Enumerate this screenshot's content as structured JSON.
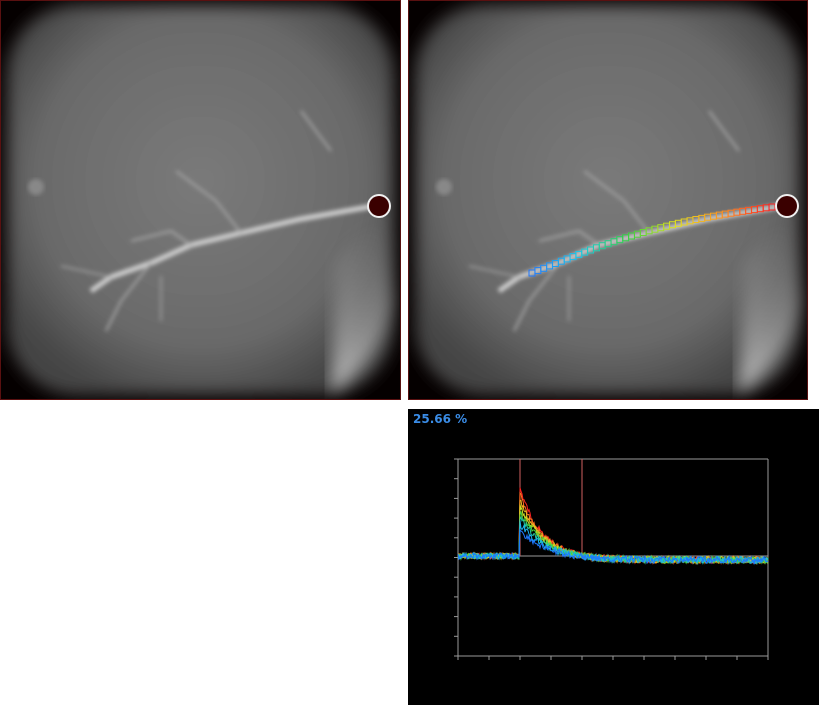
{
  "plot": {
    "percent_label": "25.66 %"
  },
  "colors": {
    "plot_background": "#000000",
    "axis": "#9a9a9a",
    "marker_line": "#d06060",
    "percent_text": "#3a8ce6",
    "optic_disc": "#3a0000",
    "roi_gradient": [
      "#1e78ff",
      "#18c8e8",
      "#30d040",
      "#e0e020",
      "#ff9020",
      "#ff2020"
    ]
  }
}
